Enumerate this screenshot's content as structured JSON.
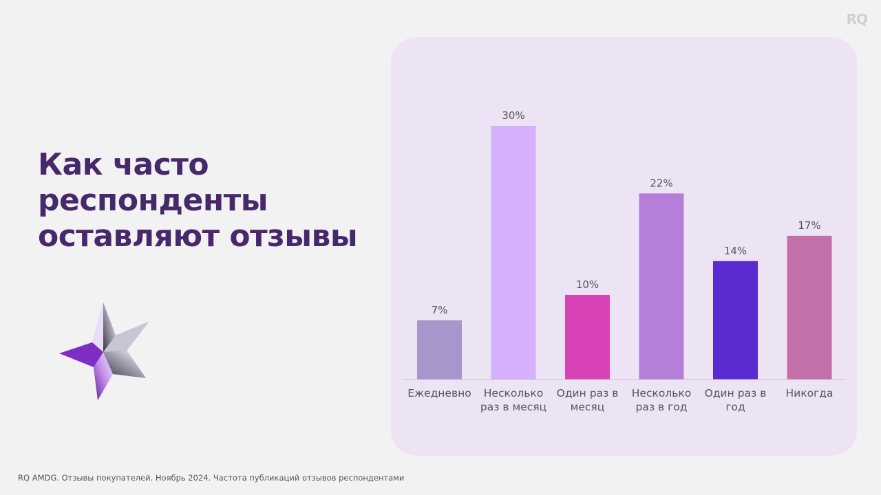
{
  "brand": "RQ",
  "title_lines": [
    "Как часто",
    "респонденты",
    "оставляют отзывы"
  ],
  "footer": "RQ AMDG. Отзывы покупателей. Ноябрь 2024. Частота публикаций отзывов респондентами",
  "colors": {
    "title": "#47286b",
    "panel": "#ece4f5",
    "page_bg": "#f2f2f2"
  },
  "chart_data": {
    "type": "bar",
    "categories": [
      [
        "Ежедневно"
      ],
      [
        "Несколько",
        "раз в месяц"
      ],
      [
        "Один раз в",
        "месяц"
      ],
      [
        "Несколько",
        "раз в год"
      ],
      [
        "Один раз в",
        "год"
      ],
      [
        "Никогда"
      ]
    ],
    "values": [
      7,
      30,
      10,
      22,
      14,
      17
    ],
    "value_labels": [
      "7%",
      "30%",
      "10%",
      "22%",
      "14%",
      "17%"
    ],
    "bar_colors": [
      "#a895cc",
      "#d6b1fb",
      "#d844b8",
      "#b57ed8",
      "#5a2bd1",
      "#c26faa"
    ],
    "ylim": [
      0,
      30
    ],
    "grid": false,
    "legend": "none"
  }
}
